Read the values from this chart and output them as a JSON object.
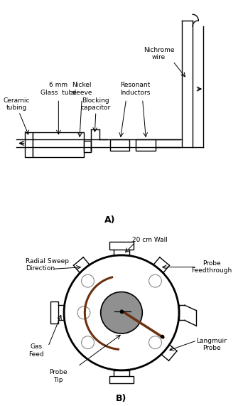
{
  "bg_color": "#ffffff",
  "line_color": "#000000",
  "dark_brown": "#6b3010",
  "gray_fill": "#909090",
  "label_A": "A)",
  "label_B": "B)",
  "labels_top": {
    "ceramic_tubing": "Ceramic\ntubing",
    "glass_tube": "6 mm\nGlass  tube",
    "nickel_sleeve": "Nickel\nsleeve",
    "blocking_cap": "Blocking\ncapacitor",
    "resonant_ind": "Resonant\nInductors",
    "nichrome": "Nichrome\nwire"
  },
  "labels_bottom": {
    "radial_sweep": "Radial Sweep\nDirection",
    "wall": "20 cm Wall",
    "probe_feedthrough": "Probe\nFeedthrough",
    "gas_feed": "Gas\nFeed",
    "langmuir": "Langmuir\nProbe",
    "probe_tip": "Probe\nTip"
  }
}
